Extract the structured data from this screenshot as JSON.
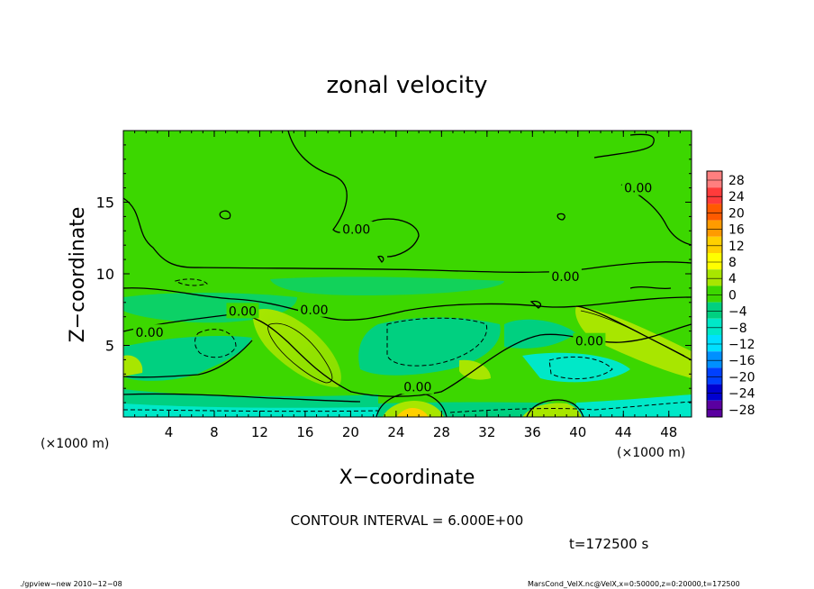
{
  "chart_data": {
    "type": "heatmap",
    "title": "zonal velocity",
    "xlabel": "X−coordinate",
    "ylabel": "Z−coordinate",
    "x_unit": "(×1000 m)",
    "y_unit": "(×1000 m)",
    "xlim": [
      0,
      50
    ],
    "ylim": [
      0,
      20
    ],
    "x_ticks": [
      4,
      8,
      12,
      16,
      20,
      24,
      28,
      32,
      36,
      40,
      44,
      48
    ],
    "y_ticks": [
      5,
      10,
      15
    ],
    "colorbar": {
      "labels": [
        "28",
        "24",
        "20",
        "16",
        "12",
        "8",
        "4",
        "0",
        "−4",
        "−8",
        "−12",
        "−16",
        "−20",
        "−24",
        "−28"
      ],
      "levels": [
        28,
        24,
        20,
        16,
        12,
        8,
        4,
        0,
        -4,
        -8,
        -12,
        -16,
        -20,
        -24,
        -28
      ],
      "colors": [
        "#ff7f7f",
        "#ff3b3b",
        "#ff5a00",
        "#ff9b00",
        "#ffd000",
        "#ffff00",
        "#a8e600",
        "#3cd700",
        "#00d080",
        "#00e8c8",
        "#00e0ff",
        "#0090ff",
        "#0040ff",
        "#0000d0",
        "#5a00a0"
      ]
    },
    "contour_labels": [
      {
        "text": "0.00",
        "x": 20.5,
        "z": 13.1
      },
      {
        "text": "0.00",
        "x": 45.3,
        "z": 16.0
      },
      {
        "text": "0.00",
        "x": 38.9,
        "z": 9.8
      },
      {
        "text": "0.00",
        "x": 10.5,
        "z": 7.4
      },
      {
        "text": "0.00",
        "x": 16.8,
        "z": 7.5
      },
      {
        "text": "0.00",
        "x": 2.3,
        "z": 5.9
      },
      {
        "text": "0.00",
        "x": 41.0,
        "z": 5.3
      },
      {
        "text": "0.00",
        "x": 25.9,
        "z": 2.1
      }
    ],
    "contour_interval_text": "CONTOUR INTERVAL = 6.000E+00",
    "time_text": "t=172500 s"
  },
  "footer": {
    "left": "./gpview−new  2010−12−08",
    "right": "MarsCond_VelX.nc@VelX,x=0:50000,z=0:20000,t=172500"
  }
}
